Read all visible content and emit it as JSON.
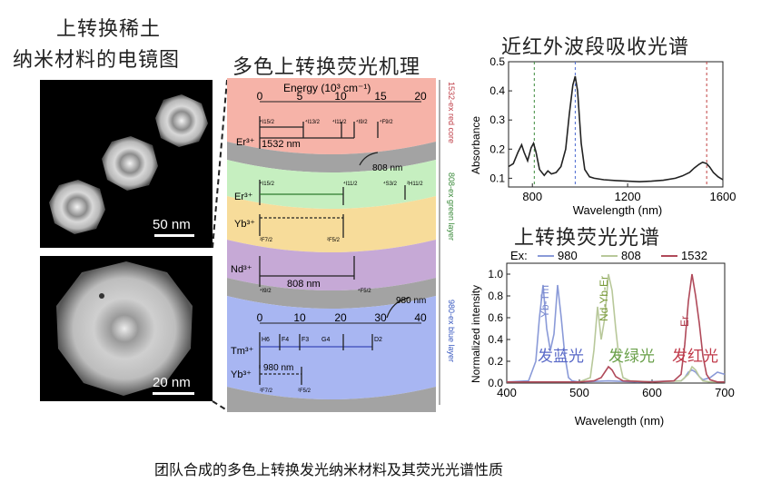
{
  "left": {
    "title_line1": "上转换稀土",
    "title_line2": "纳米材料的电镜图",
    "scale_top": "50 nm",
    "scale_bottom": "20 nm"
  },
  "middle": {
    "title": "多色上转换荧光机理",
    "top_axis": {
      "title": "Energy (10³ cm⁻¹)",
      "ticks": [
        "0",
        "5",
        "10",
        "15",
        "20"
      ]
    },
    "bottom_axis": {
      "ticks": [
        "0",
        "10",
        "20",
        "30",
        "40"
      ]
    },
    "side_labels": [
      "1532-ex red core",
      "808-ex green layer",
      "980-ex blue layer"
    ],
    "ions": [
      "Er³⁺",
      "Er³⁺",
      "Yb³⁺",
      "Nd³⁺",
      "Tm³⁺",
      "Yb³⁺"
    ],
    "excitation_labels": [
      "1532 nm",
      "808 nm",
      "808 nm",
      "980 nm",
      "980 nm"
    ],
    "state_labels": [
      "⁴I15/2",
      "⁴I13/2",
      "⁴I11/2",
      "⁴I9/2",
      "⁴F9/2",
      "⁴I15/2",
      "⁴I11/2",
      "⁴S3/2",
      "²H11/2",
      "²F7/2",
      "²F5/2",
      "⁴I9/2",
      "⁴F5/2",
      "H6",
      "F4",
      "F3",
      "G4",
      "D2",
      "²F7/2",
      "²F5/2"
    ],
    "colors": {
      "red": "#f6b3a8",
      "green": "#c6efc0",
      "yellow": "#f7dc9a",
      "purple": "#c6a9d6",
      "blue": "#a8b6f2",
      "gray": "#a3a3a3"
    }
  },
  "right_top": {
    "title": "近红外波段吸收光谱",
    "chart_data": {
      "type": "line",
      "title": "",
      "xlabel": "Wavelength (nm)",
      "ylabel": "Absorbance",
      "xlim": [
        700,
        1600
      ],
      "ylim": [
        0.07,
        0.5
      ],
      "xticks": [
        800,
        1200,
        1600
      ],
      "yticks": [
        0.1,
        0.2,
        0.3,
        0.4,
        0.5
      ],
      "vlines": [
        {
          "x": 808,
          "color": "#3a8a3a"
        },
        {
          "x": 980,
          "color": "#4a6ad0"
        },
        {
          "x": 1532,
          "color": "#c04040"
        }
      ],
      "series": [
        {
          "color": "#222222",
          "x": [
            700,
            720,
            740,
            755,
            765,
            780,
            795,
            805,
            815,
            830,
            850,
            865,
            880,
            900,
            920,
            940,
            955,
            970,
            980,
            990,
            1005,
            1020,
            1040,
            1060,
            1100,
            1150,
            1200,
            1250,
            1300,
            1350,
            1400,
            1430,
            1460,
            1480,
            1500,
            1515,
            1532,
            1545,
            1560,
            1580,
            1600
          ],
          "y": [
            0.14,
            0.15,
            0.19,
            0.215,
            0.19,
            0.16,
            0.205,
            0.22,
            0.19,
            0.13,
            0.11,
            0.125,
            0.115,
            0.12,
            0.14,
            0.2,
            0.32,
            0.42,
            0.45,
            0.4,
            0.22,
            0.13,
            0.105,
            0.1,
            0.095,
            0.092,
            0.09,
            0.088,
            0.09,
            0.093,
            0.1,
            0.108,
            0.12,
            0.135,
            0.148,
            0.155,
            0.15,
            0.138,
            0.12,
            0.105,
            0.095
          ]
        }
      ]
    }
  },
  "right_bottom": {
    "title": "上转换荧光光谱",
    "chart_data": {
      "type": "line",
      "title": "",
      "xlabel": "Wavelength (nm)",
      "ylabel": "Normalized intensity",
      "xlim": [
        400,
        700
      ],
      "ylim": [
        0,
        1.1
      ],
      "xticks": [
        400,
        500,
        600,
        700
      ],
      "yticks": [
        0.0,
        0.2,
        0.4,
        0.6,
        0.8,
        1.0
      ],
      "legend": {
        "prefix": "Ex:",
        "placement": "top"
      },
      "series": [
        {
          "name": "980",
          "color": "#8a9ad8",
          "x": [
            400,
            430,
            440,
            445,
            450,
            455,
            460,
            465,
            470,
            475,
            480,
            485,
            490,
            500,
            540,
            580,
            640,
            645,
            650,
            655,
            660,
            665,
            670,
            680,
            690,
            700
          ],
          "y": [
            0.01,
            0.02,
            0.2,
            0.6,
            0.9,
            0.5,
            0.3,
            0.45,
            0.9,
            0.6,
            0.25,
            0.05,
            0.02,
            0.01,
            0.02,
            0.01,
            0.02,
            0.05,
            0.1,
            0.12,
            0.1,
            0.06,
            0.03,
            0.05,
            0.1,
            0.08
          ]
        },
        {
          "name": "808",
          "color": "#b8c89a",
          "x": [
            400,
            500,
            515,
            520,
            525,
            530,
            535,
            540,
            545,
            550,
            555,
            560,
            570,
            600,
            640,
            650,
            655,
            660,
            665,
            670,
            680,
            700
          ],
          "y": [
            0.01,
            0.01,
            0.05,
            0.3,
            0.7,
            0.4,
            0.6,
            1.0,
            0.85,
            0.5,
            0.2,
            0.05,
            0.02,
            0.01,
            0.02,
            0.08,
            0.15,
            0.12,
            0.06,
            0.02,
            0.01,
            0.01
          ]
        },
        {
          "name": "1532",
          "color": "#b04a5a",
          "x": [
            400,
            500,
            520,
            530,
            535,
            540,
            545,
            550,
            560,
            600,
            630,
            640,
            645,
            650,
            655,
            660,
            665,
            670,
            675,
            680,
            690,
            700
          ],
          "y": [
            0.01,
            0.01,
            0.02,
            0.05,
            0.1,
            0.15,
            0.12,
            0.06,
            0.02,
            0.01,
            0.02,
            0.08,
            0.35,
            0.75,
            1.0,
            0.8,
            0.55,
            0.25,
            0.08,
            0.03,
            0.01,
            0.01
          ]
        }
      ],
      "annotations": [
        {
          "text": "Yb-Tm",
          "color": "#7a8ad0"
        },
        {
          "text": "Nd-Yb-Er",
          "color": "#7a9a3a"
        },
        {
          "text": "Er",
          "color": "#b03a4a"
        },
        {
          "text": "发蓝光",
          "color": "#5a6ac8"
        },
        {
          "text": "发绿光",
          "color": "#6aa04a"
        },
        {
          "text": "发红光",
          "color": "#c03a4a"
        }
      ]
    }
  },
  "caption": "团队合成的多色上转换发光纳米材料及其荧光光谱性质"
}
